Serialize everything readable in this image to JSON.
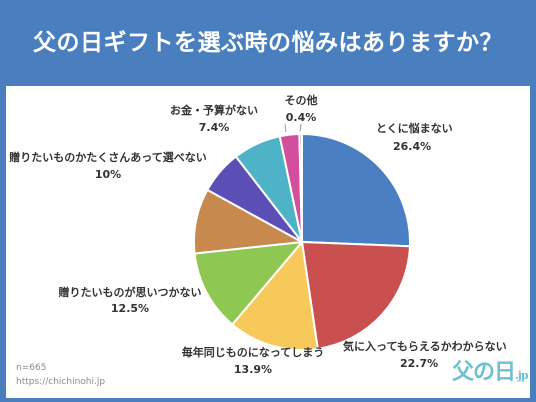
{
  "header": {
    "title": "父の日ギフトを選ぶ時の悩みはありますか？"
  },
  "footer": {
    "sample": "n=665",
    "url": "https://chichinohi.jp"
  },
  "logo": {
    "text": "父の日",
    "suffix": ".jp"
  },
  "chart_data": {
    "type": "pie",
    "title": "父の日ギフトを選ぶ時の悩みはありますか？",
    "slices": [
      {
        "label": "とくに悩まない",
        "value": 26.4,
        "display": "26.4%",
        "color": "#4a7fc4"
      },
      {
        "label": "気に入ってもらえるかわからない",
        "value": 22.7,
        "display": "22.7%",
        "color": "#c9504f"
      },
      {
        "label": "毎年同じものになってしまう",
        "value": 13.9,
        "display": "13.9%",
        "color": "#f7c95a"
      },
      {
        "label": "贈りたいものが思いつかない",
        "value": 12.5,
        "display": "12.5%",
        "color": "#8fc753"
      },
      {
        "label": "贈りたいものかたくさんあって選べない",
        "value": 10,
        "display": "10%",
        "color": "#c8894f"
      },
      {
        "label": "",
        "value": 6.7,
        "display": "",
        "color": "#5b4fb5"
      },
      {
        "label": "お金・予算がない",
        "value": 7.4,
        "display": "7.4%",
        "color": "#4fb3c8"
      },
      {
        "label": "",
        "value": 3.0,
        "display": "",
        "color": "#d24f9e"
      },
      {
        "label": "その他",
        "value": 0.4,
        "display": "0.4%",
        "color": "#a8a8a8"
      }
    ],
    "start_angle_deg": 0,
    "direction": "clockwise",
    "legend": "none"
  }
}
